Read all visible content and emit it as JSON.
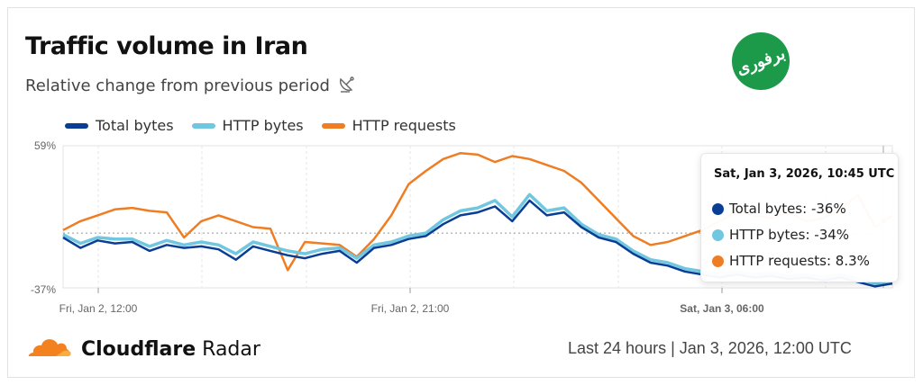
{
  "header": {
    "title": "Traffic volume in Iran",
    "subtitle": "Relative change from previous period",
    "logo_text": "برفوری"
  },
  "colors": {
    "total": "#0a3e94",
    "http_bytes": "#72c7e0",
    "http_requests": "#ee7d23",
    "brand": "#f48120",
    "logo_bg": "#1c9a4a"
  },
  "chart_data": {
    "type": "line",
    "title": "Traffic volume in Iran",
    "ylabel": "Relative change from previous period",
    "ylim": [
      -37,
      59
    ],
    "y_ticks": [
      "59%",
      "-37%"
    ],
    "x_ticks": [
      "Fri, Jan 2, 12:00",
      "Fri, Jan 2, 21:00",
      "Sat, Jan 3, 06:00"
    ],
    "x_start": "Fri, Jan 2, 11:00 UTC",
    "x_step_minutes": 30,
    "legend_position": "top-left",
    "series": [
      {
        "name": "Total bytes",
        "values": [
          -3,
          -10,
          -5,
          -7,
          -6,
          -12,
          -8,
          -10,
          -9,
          -11,
          -18,
          -9,
          -12,
          -15,
          -17,
          -14,
          -12,
          -20,
          -10,
          -8,
          -4,
          -2,
          6,
          12,
          14,
          18,
          8,
          22,
          12,
          14,
          4,
          -3,
          -6,
          -14,
          -20,
          -22,
          -26,
          -28,
          -30,
          -28,
          -30,
          -29,
          -31,
          -30,
          -32,
          -30,
          -33,
          -36,
          -34
        ]
      },
      {
        "name": "HTTP bytes",
        "values": [
          -1,
          -7,
          -3,
          -4,
          -4,
          -9,
          -5,
          -8,
          -6,
          -8,
          -14,
          -6,
          -9,
          -12,
          -14,
          -11,
          -10,
          -17,
          -8,
          -6,
          -2,
          0,
          9,
          15,
          17,
          22,
          11,
          26,
          15,
          17,
          6,
          -1,
          -4,
          -12,
          -18,
          -20,
          -24,
          -26,
          -28,
          -26,
          -28,
          -27,
          -29,
          -28,
          -30,
          -28,
          -31,
          -34,
          -32
        ]
      },
      {
        "name": "HTTP requests",
        "values": [
          2,
          8,
          12,
          16,
          17,
          15,
          14,
          -3,
          8,
          12,
          8,
          4,
          3,
          -25,
          -6,
          -7,
          -8,
          -16,
          -4,
          12,
          33,
          42,
          50,
          54,
          53,
          48,
          52,
          50,
          46,
          42,
          34,
          22,
          10,
          -2,
          -8,
          -6,
          -2,
          2,
          8,
          14,
          12,
          10,
          14,
          8,
          10,
          16,
          26,
          4,
          12
        ]
      }
    ]
  },
  "tooltip": {
    "title": "Sat, Jan 3, 2026, 10:45 UTC",
    "rows": [
      "Total bytes: -36%",
      "HTTP bytes: -34%",
      "HTTP requests: 8.3%"
    ]
  },
  "footer": {
    "brand_bold": "Cloudflare",
    "brand_rest": "Radar",
    "range": "Last 24 hours",
    "date": "| Jan 3, 2026, 12:00 UTC"
  }
}
